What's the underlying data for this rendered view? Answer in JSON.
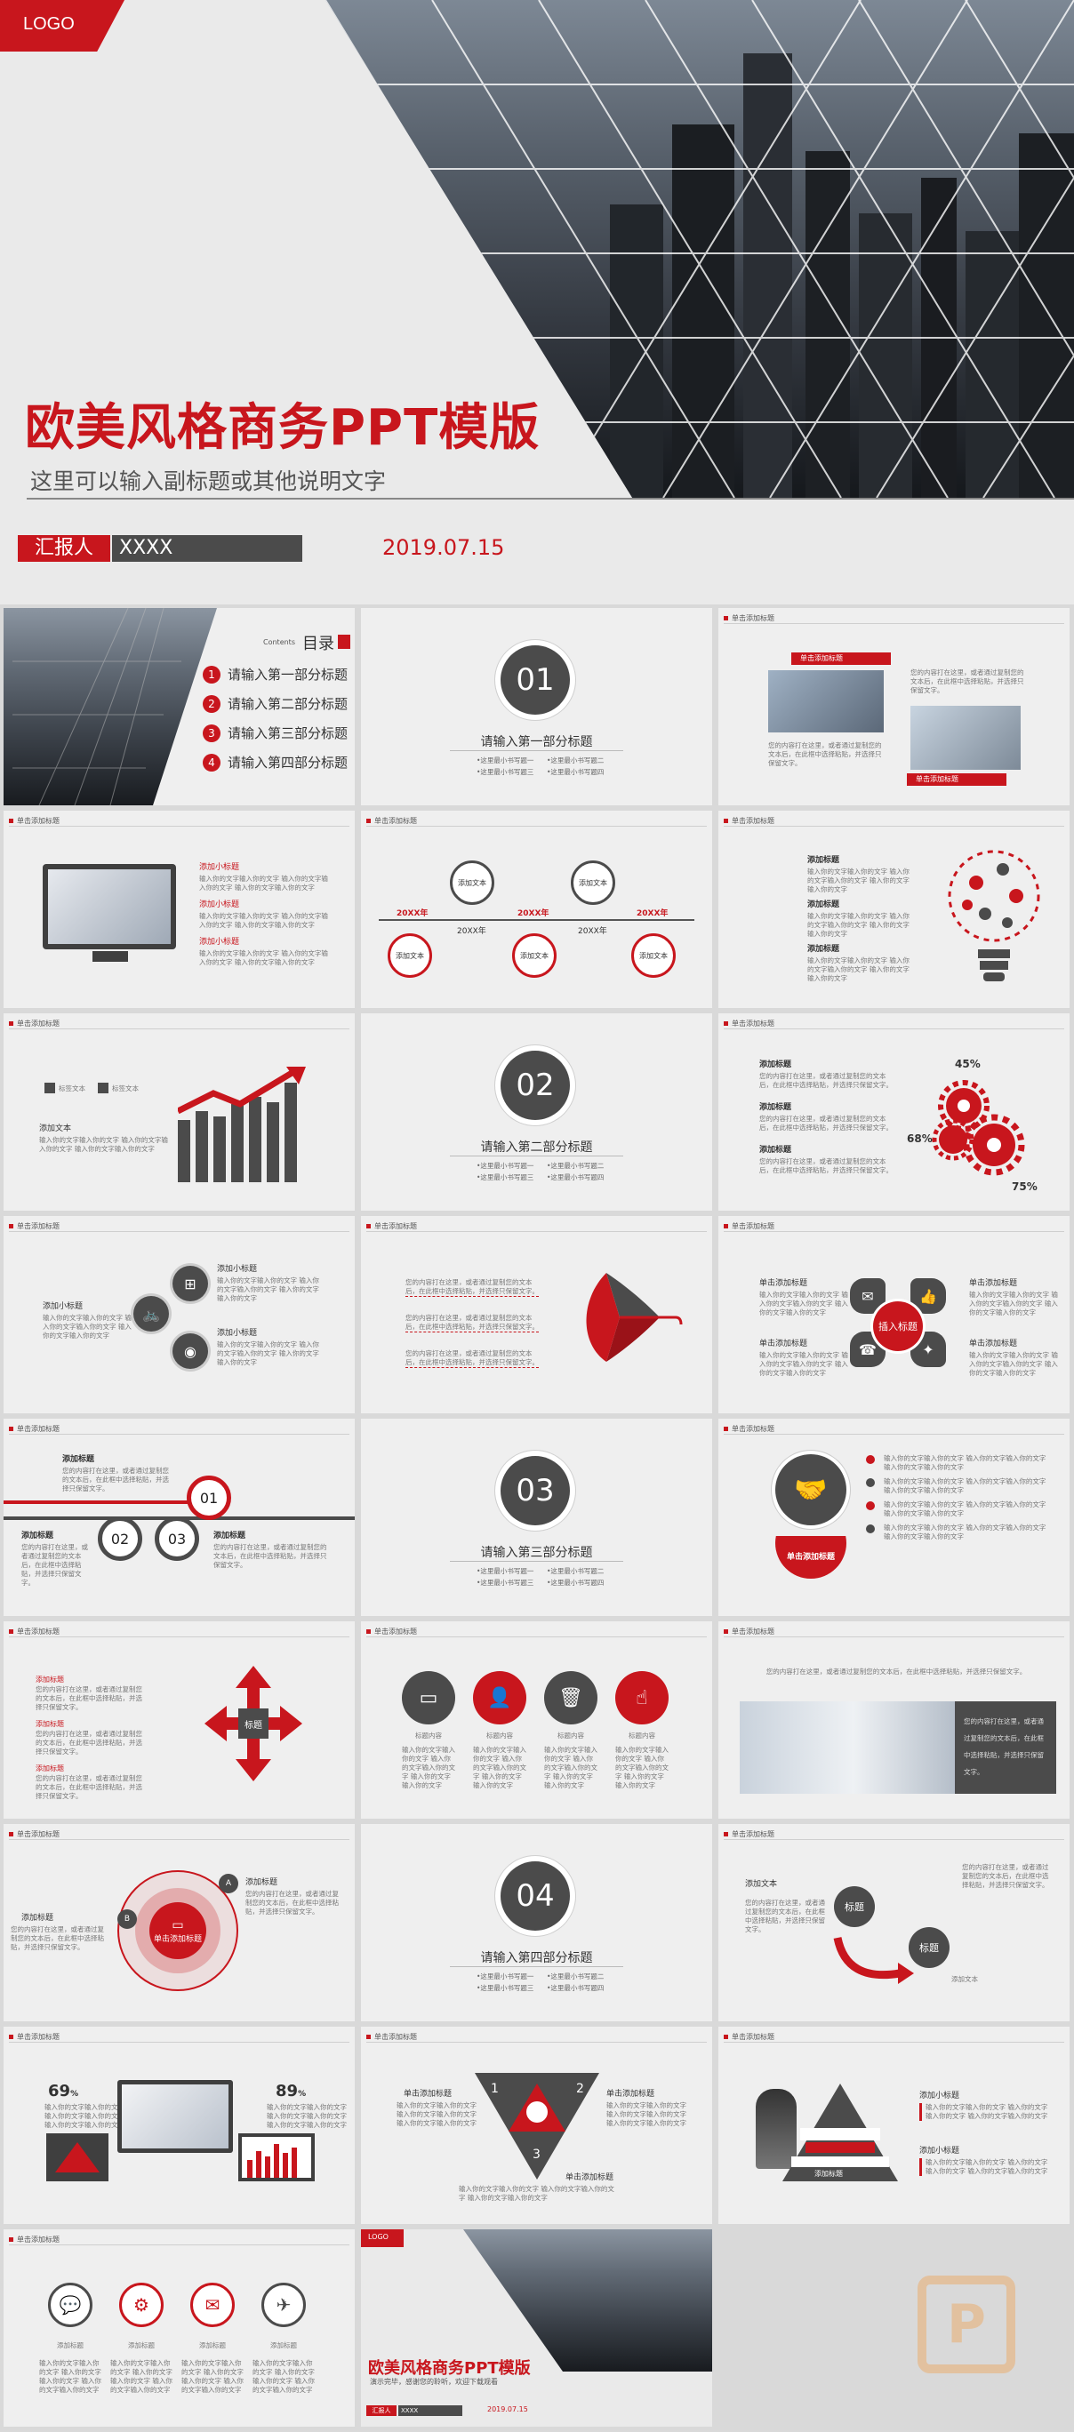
{
  "hero": {
    "logo": "LOGO",
    "title": "欧美风格商务PPT模版",
    "subtitle": "这里可以输入副标题或其他说明文字",
    "reporter_label": "汇报人",
    "reporter_name": "XXXX",
    "date": "2019.07.15"
  },
  "toc": {
    "contents_label": "Contents",
    "title": "目录",
    "items": [
      {
        "num": "1",
        "label": "请输入第一部分标题"
      },
      {
        "num": "2",
        "label": "请输入第二部分标题"
      },
      {
        "num": "3",
        "label": "请输入第三部分标题"
      },
      {
        "num": "4",
        "label": "请输入第四部分标题"
      }
    ]
  },
  "header_label": "单击添加标题",
  "sections": [
    {
      "num": "01",
      "title": "请输入第一部分标题",
      "bullets": [
        "•这里最小书写题一",
        "•这里最小书写题二",
        "•这里最小书写题三",
        "•这里最小书写题四"
      ]
    },
    {
      "num": "02",
      "title": "请输入第二部分标题",
      "bullets": [
        "•这里最小书写题一",
        "•这里最小书写题二",
        "•这里最小书写题三",
        "•这里最小书写题四"
      ]
    },
    {
      "num": "03",
      "title": "请输入第三部分标题",
      "bullets": [
        "•这里最小书写题一",
        "•这里最小书写题二",
        "•这里最小书写题三",
        "•这里最小书写题四"
      ]
    },
    {
      "num": "04",
      "title": "请输入第四部分标题",
      "bullets": [
        "•这里最小书写题一",
        "•这里最小书写题二",
        "•这里最小书写题三",
        "•这里最小书写题四"
      ]
    }
  ],
  "texts": {
    "add_title": "添加标题",
    "add_subtitle": "添加小标题",
    "click_add_title": "单击添加标题",
    "click_add_text": "添加文本",
    "title_word": "标题",
    "insert_title": "插入标题",
    "year_label": "20XX年",
    "year_plain": "20XX年",
    "body": "输入你的文字输入你的文字 输入你的文字输入你的文字 输入你的文字输入你的文字",
    "body_long": "您的内容打在这里，或者通过复制您的文本后，在此框中选择粘贴，并选择只保留文字。",
    "label_text": "标签文本",
    "pct45": "45%",
    "pct68": "68%",
    "pct75": "75%",
    "pct69": "69",
    "pct89": "89",
    "pct_sign": "%",
    "icon_title": "标题内容"
  },
  "end": {
    "logo": "LOGO",
    "title": "欧美风格商务PPT模版",
    "subtitle": "演示完毕，感谢您的聆听，欢迎下载观看",
    "reporter_label": "汇报人",
    "reporter_name": "XXXX",
    "date": "2019.07.15"
  },
  "colors": {
    "accent": "#c8161d",
    "dark": "#4b4b4b",
    "bg": "#efefef",
    "watermark": "#e8b27a"
  },
  "icons": [
    "monitor-icon",
    "user-icon",
    "trash-icon",
    "hand-icon",
    "wechat-icon",
    "gear-icon",
    "mail-icon",
    "plane-icon",
    "handshake-icon",
    "lightbulb-icon"
  ]
}
